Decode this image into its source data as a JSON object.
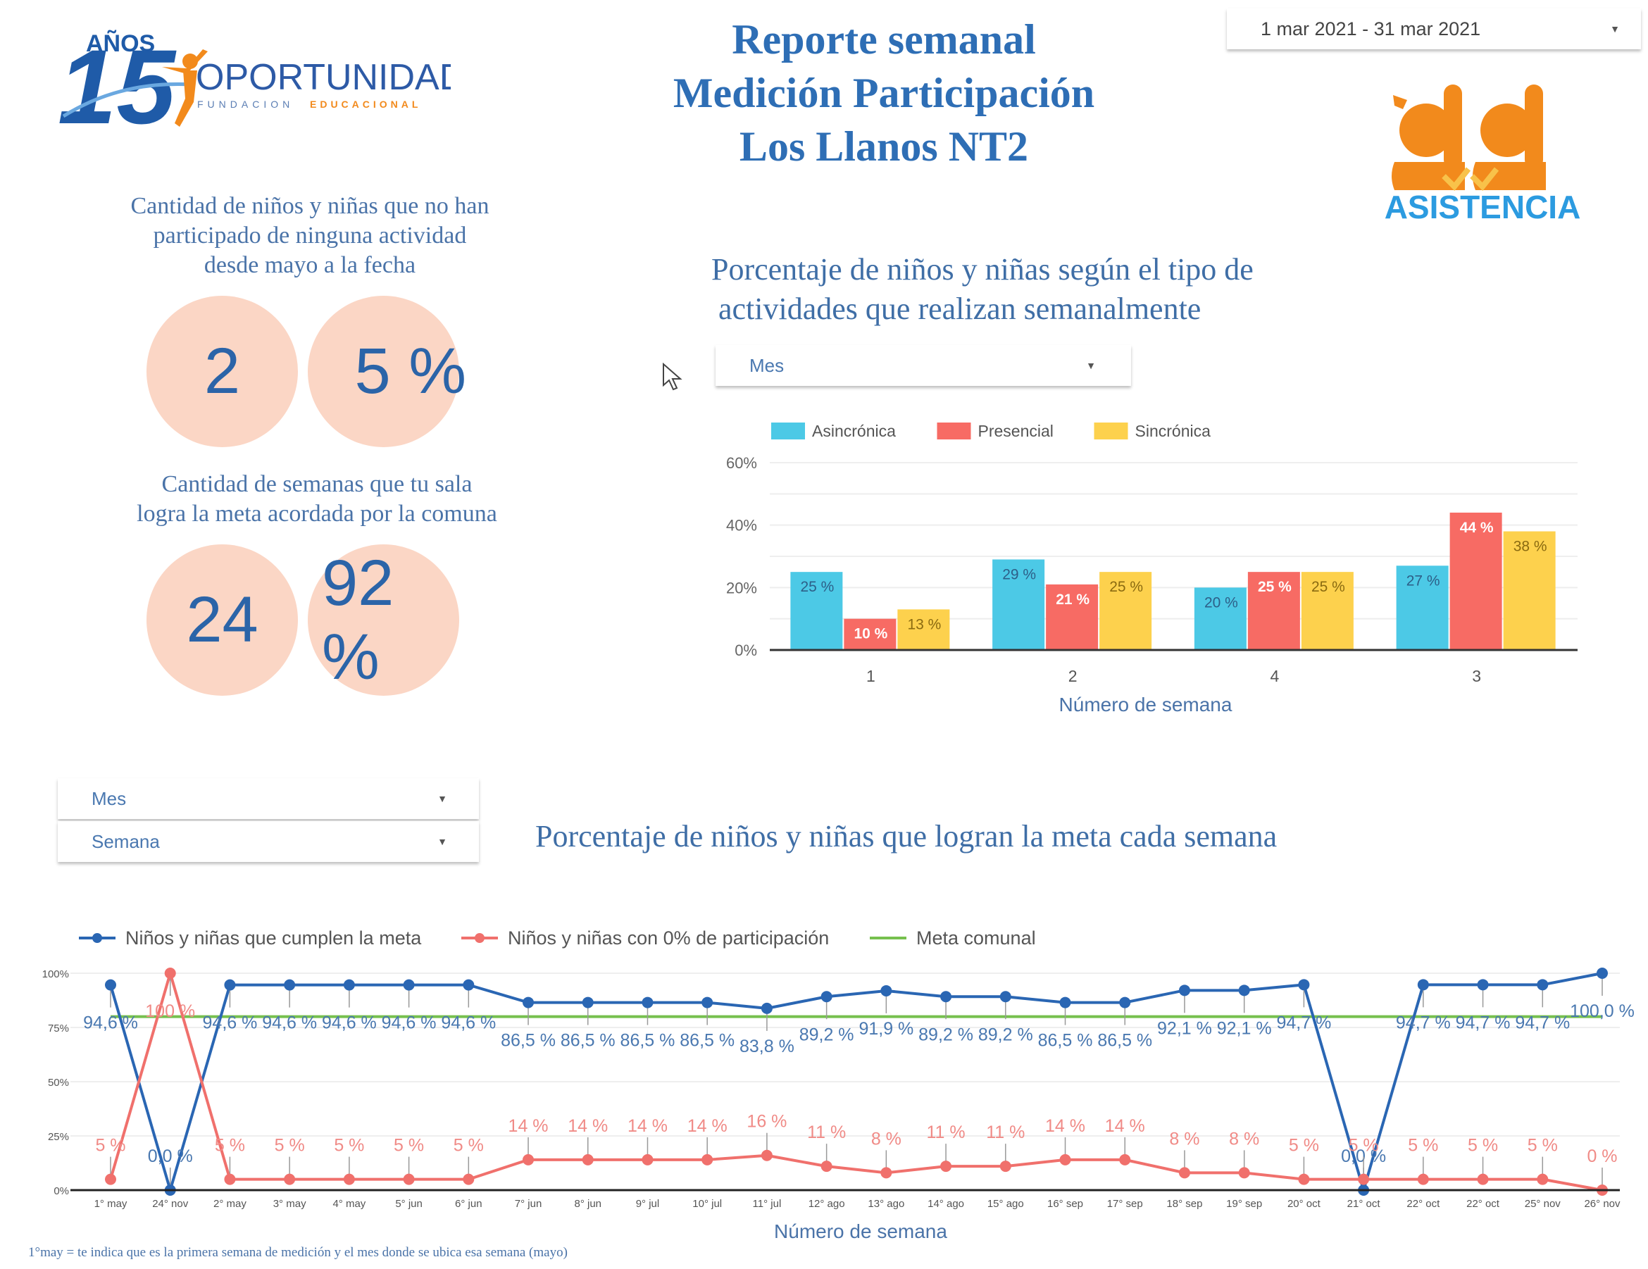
{
  "header": {
    "title_lines": [
      "Reporte semanal",
      "Medición Participación",
      "Los Llanos NT2"
    ],
    "date_range": "1 mar 2021 - 31 mar 2021",
    "logo_left": {
      "top": "AÑOS",
      "number": "15",
      "name": "OPORTUNIDAD",
      "sub1": "FUNDACION",
      "sub2": "EDUCACIONAL"
    },
    "logo_right": {
      "label": "ASISTENCIA"
    }
  },
  "colors": {
    "brand_blue": "#2e6eb5",
    "kpi_circle": "#fbd6c5",
    "asincronica": "#4cc9e6",
    "presencial": "#f76b64",
    "sincronica": "#fdd14d",
    "line_meta": "#2a66b3",
    "line_zero": "#f0706c",
    "line_comunal": "#76c04e",
    "orange": "#f28a1c"
  },
  "kpis": {
    "no_participation": {
      "heading_lines": [
        "Cantidad de niños y niñas que no han",
        "participado de ninguna actividad",
        "desde mayo a la fecha"
      ],
      "count": "2",
      "percent": "5 %"
    },
    "weeks_goal": {
      "heading_lines": [
        "Cantidad de semanas que tu sala",
        "logra la meta acordada por la comuna"
      ],
      "count": "24",
      "percent": "92 %"
    }
  },
  "bar_section": {
    "title_lines": [
      "Porcentaje de niños y niñas según el tipo de",
      "actividades que realizan semanalmente"
    ],
    "filter_mes": "Mes"
  },
  "line_section": {
    "title": "Porcentaje de niños y niñas que logran la meta cada semana",
    "filter_mes": "Mes",
    "filter_semana": "Semana",
    "footnote": "1°may =  te indica que es la primera semana de medición y el mes donde se ubica esa semana (mayo)"
  },
  "chart_data": [
    {
      "type": "bar",
      "title": "Porcentaje de niños y niñas según el tipo de actividades que realizan semanalmente",
      "xlabel": "Número de semana",
      "ylabel": "",
      "categories": [
        "1",
        "2",
        "4",
        "3"
      ],
      "ylim": [
        0,
        60
      ],
      "yticks": [
        "0%",
        "20%",
        "40%",
        "60%"
      ],
      "ytick_values": [
        0,
        20,
        40,
        60
      ],
      "legend_position": "top-left",
      "grid": true,
      "series": [
        {
          "name": "Asincrónica",
          "values": [
            25,
            29,
            20,
            27
          ],
          "labels": [
            "25 %",
            "29 %",
            "20 %",
            "27 %"
          ]
        },
        {
          "name": "Presencial",
          "values": [
            10,
            21,
            25,
            44
          ],
          "labels": [
            "10 %",
            "21 %",
            "25 %",
            "44 %"
          ]
        },
        {
          "name": "Sincrónica",
          "values": [
            13,
            25,
            25,
            38
          ],
          "labels": [
            "13 %",
            "25 %",
            "25 %",
            "38 %"
          ]
        }
      ]
    },
    {
      "type": "line",
      "title": "Porcentaje de niños y niñas que logran la meta cada semana",
      "xlabel": "Número de semana",
      "ylabel": "",
      "categories": [
        "1° may",
        "24° nov",
        "2° may",
        "3° may",
        "4° may",
        "5° jun",
        "6° jun",
        "7° jun",
        "8° jun",
        "9° jul",
        "10° jul",
        "11° jul",
        "12° ago",
        "13° ago",
        "14° ago",
        "15° ago",
        "16° sep",
        "17° sep",
        "18° sep",
        "19° sep",
        "20° oct",
        "21° oct",
        "22° oct",
        "22° oct",
        "25° nov",
        "26° nov"
      ],
      "ylim": [
        0,
        100
      ],
      "yticks": [
        "0%",
        "25%",
        "50%",
        "75%",
        "100%"
      ],
      "ytick_values": [
        0,
        25,
        50,
        75,
        100
      ],
      "legend_position": "top-left",
      "grid": true,
      "series": [
        {
          "name": "Niños y niñas que cumplen la meta",
          "values": [
            94.6,
            0.0,
            94.6,
            94.6,
            94.6,
            94.6,
            94.6,
            86.5,
            86.5,
            86.5,
            86.5,
            83.8,
            89.2,
            91.9,
            89.2,
            89.2,
            86.5,
            86.5,
            92.1,
            92.1,
            94.7,
            0.0,
            94.7,
            94.7,
            94.7,
            100.0
          ],
          "labels": [
            "94,6 %",
            "0,0 %",
            "94,6 %",
            "94,6 %",
            "94,6 %",
            "94,6 %",
            "94,6 %",
            "86,5 %",
            "86,5 %",
            "86,5 %",
            "86,5 %",
            "83,8 %",
            "89,2 %",
            "91,9 %",
            "89,2 %",
            "89,2 %",
            "86,5 %",
            "86,5 %",
            "92,1 %",
            "92,1 %",
            "94,7 %",
            "0,0 %",
            "94,7 %",
            "94,7 %",
            "94,7 %",
            "100,0 %"
          ]
        },
        {
          "name": "Niños y niñas con 0% de participación",
          "values": [
            5,
            100,
            5,
            5,
            5,
            5,
            5,
            14,
            14,
            14,
            14,
            16,
            11,
            8,
            11,
            11,
            14,
            14,
            8,
            8,
            5,
            5,
            5,
            5,
            5,
            0
          ],
          "labels": [
            "5 %",
            "100 %",
            "5 %",
            "5 %",
            "5 %",
            "5 %",
            "5 %",
            "14 %",
            "14 %",
            "14 %",
            "14 %",
            "16 %",
            "11 %",
            "8 %",
            "11 %",
            "11 %",
            "14 %",
            "14 %",
            "8 %",
            "8 %",
            "5 %",
            "5 %",
            "5 %",
            "5 %",
            "5 %",
            "0 %"
          ]
        },
        {
          "name": "Meta comunal",
          "values": [
            80,
            80,
            80,
            80,
            80,
            80,
            80,
            80,
            80,
            80,
            80,
            80,
            80,
            80,
            80,
            80,
            80,
            80,
            80,
            80,
            80,
            80,
            80,
            80,
            80,
            80
          ]
        }
      ]
    }
  ]
}
